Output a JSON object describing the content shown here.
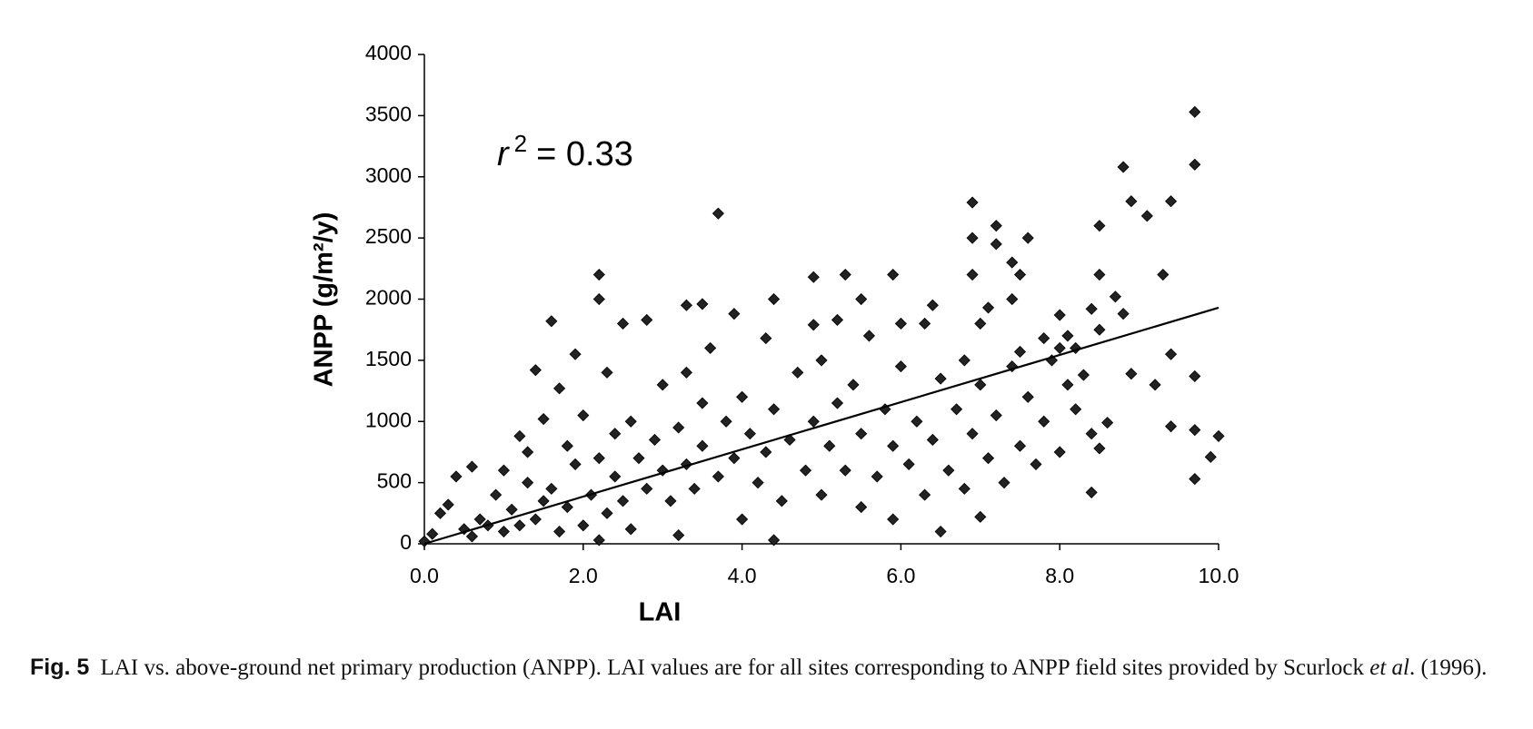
{
  "chart_data": {
    "type": "scatter",
    "x_label": "LAI",
    "y_label": "ANPP (g/m²/y)",
    "annotation": {
      "variable": "r",
      "exponent": "2",
      "text": "= 0.33"
    },
    "color": "#222222",
    "xlim": [
      0,
      10
    ],
    "ylim": [
      0,
      4000
    ],
    "xticks": [
      {
        "value": 0,
        "label": "0.0"
      },
      {
        "value": 2,
        "label": "2.0"
      },
      {
        "value": 4,
        "label": "4.0"
      },
      {
        "value": 6,
        "label": "6.0"
      },
      {
        "value": 8,
        "label": "8.0"
      },
      {
        "value": 10,
        "label": "10.0"
      }
    ],
    "yticks": [
      0,
      500,
      1000,
      1500,
      2000,
      2500,
      3000,
      3500,
      4000
    ],
    "grid": false,
    "x": [
      9.7,
      9.7,
      8.8,
      8.9,
      9.1,
      9.4,
      9.3,
      3.7,
      6.9,
      6.9,
      7.2,
      7.2,
      7.6,
      7.4,
      7.5,
      8.5,
      8.5,
      2.2,
      2.2,
      4.9,
      5.3,
      5.9,
      6.9,
      4.4,
      3.3,
      3.5,
      1.6,
      2.5,
      2.8,
      3.9,
      4.9,
      5.2,
      5.5,
      6.0,
      6.4,
      7.0,
      7.1,
      7.4,
      8.7,
      8.8,
      8.0,
      9.4,
      9.7,
      9.2,
      8.9,
      9.4,
      9.7,
      10.0,
      9.9,
      9.7,
      8.4,
      8.5,
      8.6,
      8.5,
      8.4,
      8.2,
      8.1,
      8.0,
      7.8,
      7.5,
      6.5,
      4.4,
      3.2,
      2.2,
      1.4,
      1.5,
      1.7,
      1.9,
      1.2,
      0.6,
      0.4,
      0.0,
      0.1,
      0.2,
      0.3,
      0.5,
      0.6,
      0.7,
      0.8,
      0.9,
      1.0,
      1.0,
      1.1,
      1.2,
      1.3,
      1.3,
      1.4,
      1.5,
      1.6,
      1.7,
      1.8,
      1.8,
      1.9,
      2.0,
      2.0,
      2.1,
      2.2,
      2.3,
      2.3,
      2.4,
      2.4,
      2.5,
      2.6,
      2.6,
      2.7,
      2.8,
      2.9,
      3.0,
      3.0,
      3.1,
      3.2,
      3.3,
      3.3,
      3.4,
      3.5,
      3.5,
      3.6,
      3.7,
      3.8,
      3.9,
      4.0,
      4.0,
      4.1,
      4.2,
      4.3,
      4.3,
      4.4,
      4.5,
      4.6,
      4.7,
      4.8,
      4.9,
      5.0,
      5.0,
      5.1,
      5.2,
      5.3,
      5.4,
      5.5,
      5.5,
      5.6,
      5.7,
      5.8,
      5.9,
      5.9,
      6.0,
      6.1,
      6.2,
      6.3,
      6.3,
      6.4,
      6.5,
      6.6,
      6.7,
      6.8,
      6.8,
      6.9,
      7.0,
      7.0,
      7.1,
      7.2,
      7.3,
      7.4,
      7.5,
      7.6,
      7.7,
      7.8,
      7.9,
      8.0,
      8.1,
      8.2,
      8.3,
      8.4
    ],
    "values": [
      3530,
      3100,
      3080,
      2800,
      2680,
      2800,
      2200,
      2700,
      2790,
      2500,
      2600,
      2450,
      2500,
      2300,
      2200,
      2600,
      2200,
      2200,
      2000,
      2180,
      2200,
      2200,
      2200,
      2000,
      1950,
      1960,
      1820,
      1800,
      1830,
      1880,
      1790,
      1830,
      2000,
      1800,
      1950,
      1800,
      1930,
      2000,
      2020,
      1880,
      1870,
      1550,
      1370,
      1300,
      1390,
      960,
      930,
      880,
      710,
      530,
      420,
      780,
      990,
      1750,
      1920,
      1600,
      1700,
      1600,
      1680,
      1570,
      100,
      30,
      70,
      30,
      1420,
      1020,
      1270,
      1550,
      880,
      630,
      550,
      20,
      80,
      250,
      320,
      120,
      60,
      200,
      150,
      400,
      100,
      600,
      280,
      150,
      500,
      750,
      200,
      350,
      450,
      100,
      800,
      300,
      650,
      150,
      1050,
      400,
      700,
      1400,
      250,
      900,
      550,
      350,
      1000,
      120,
      700,
      450,
      850,
      600,
      1300,
      350,
      950,
      650,
      1400,
      450,
      1150,
      800,
      1600,
      550,
      1000,
      700,
      1200,
      200,
      900,
      500,
      1680,
      750,
      1100,
      350,
      850,
      1400,
      600,
      1000,
      400,
      1500,
      800,
      1150,
      600,
      1300,
      300,
      900,
      1700,
      550,
      1100,
      200,
      800,
      1450,
      650,
      1000,
      1800,
      400,
      850,
      1350,
      600,
      1100,
      1500,
      450,
      900,
      220,
      1300,
      700,
      1050,
      500,
      1450,
      800,
      1200,
      650,
      1000,
      1500,
      750,
      1300,
      1100,
      1380,
      900
    ],
    "trendline": {
      "x": [
        0,
        10
      ],
      "y": [
        0,
        1930
      ]
    }
  },
  "caption": {
    "label": "Fig. 5",
    "text": "LAI vs. above-ground net primary production (ANPP). LAI values are for all sites corresponding to ANPP field sites provided by Scurlock",
    "italic": "et al",
    "end": ". (1996)."
  }
}
